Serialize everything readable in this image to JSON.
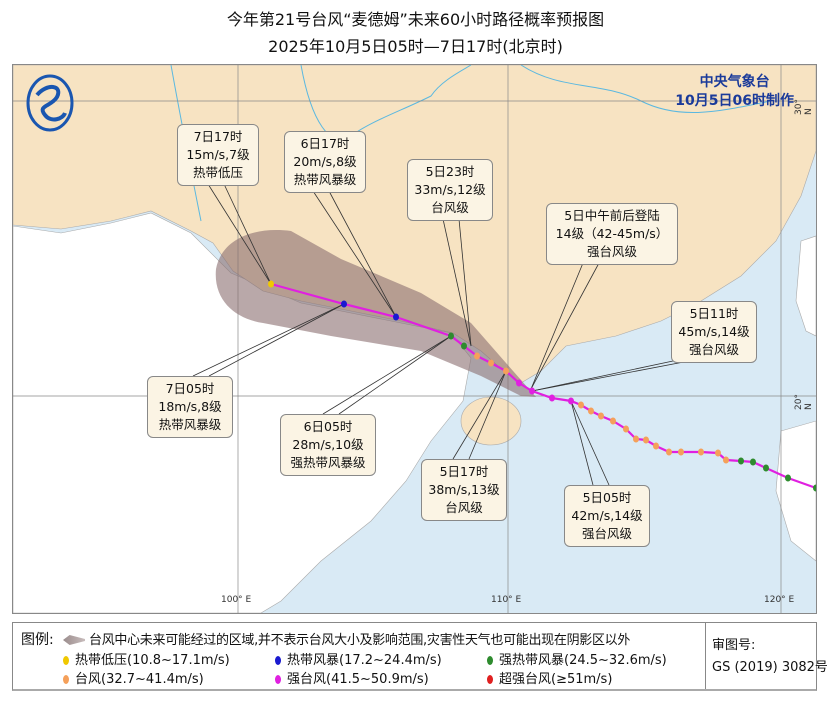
{
  "title": {
    "line1": "今年第21号台风“麦德姆”未来60小时路径概率预报图",
    "line2": "2025年10月5日05时—7日17时(北京时)"
  },
  "agency": {
    "name": "中央气象台",
    "issued": "10月5日06时制作"
  },
  "grid": {
    "lon_labels": [
      "100° E",
      "110° E",
      "120° E"
    ],
    "lat_labels": [
      "30° N",
      "20° N"
    ]
  },
  "colors": {
    "land_china": "#f7e3c2",
    "land_other": "#ffffff",
    "sea": "#d9eaf5",
    "track": "#e020e0",
    "cone": "#8a6e70"
  },
  "callouts": [
    {
      "id": "d7-17",
      "lines": [
        "7日17时",
        "15m/s,7级",
        "热带低压"
      ]
    },
    {
      "id": "d6-17",
      "lines": [
        "6日17时",
        "20m/s,8级",
        "热带风暴级"
      ]
    },
    {
      "id": "d5-23",
      "lines": [
        "5日23时",
        "33m/s,12级",
        "台风级"
      ]
    },
    {
      "id": "landfall",
      "lines": [
        "5日中午前后登陆",
        "14级（42-45m/s）",
        "强台风级"
      ]
    },
    {
      "id": "d5-11",
      "lines": [
        "5日11时",
        "45m/s,14级",
        "强台风级"
      ]
    },
    {
      "id": "d7-05",
      "lines": [
        "7日05时",
        "18m/s,8级",
        "热带风暴级"
      ]
    },
    {
      "id": "d6-05",
      "lines": [
        "6日05时",
        "28m/s,10级",
        "强热带风暴级"
      ]
    },
    {
      "id": "d5-17",
      "lines": [
        "5日17时",
        "38m/s,13级",
        "台风级"
      ]
    },
    {
      "id": "d5-05",
      "lines": [
        "5日05时",
        "42m/s,14级",
        "强台风级"
      ]
    }
  ],
  "legend": {
    "title": "图例:",
    "cone_text": "台风中心未来可能经过的区域,并不表示台风大小及影响范围,灾害性天气也可能出现在阴影区以外",
    "items": [
      {
        "label": "热带低压(10.8~17.1m/s)",
        "color": "#f0c800"
      },
      {
        "label": "热带风暴(17.2~24.4m/s)",
        "color": "#1a1ad0"
      },
      {
        "label": "强热带风暴(24.5~32.6m/s)",
        "color": "#2e8b2e"
      },
      {
        "label": "台风(32.7~41.4m/s)",
        "color": "#f5a05a"
      },
      {
        "label": "强台风(41.5~50.9m/s)",
        "color": "#e020e0"
      },
      {
        "label": "超强台风(≥51m/s)",
        "color": "#e02020"
      }
    ],
    "review_label": "审图号:",
    "review_no": "GS (2019) 3082号"
  }
}
